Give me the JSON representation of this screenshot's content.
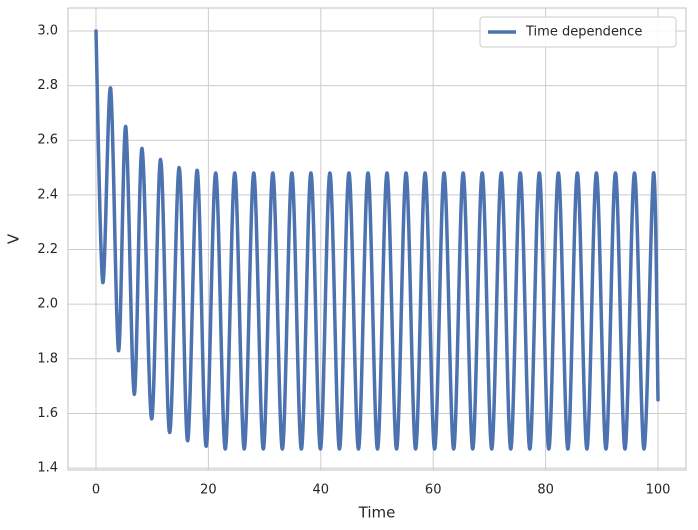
{
  "chart_data": {
    "type": "line",
    "x_label": "Time",
    "y_label": "V",
    "x": [
      0,
      1.2,
      2.6,
      4.0,
      5.3,
      6.8,
      8.2,
      9.9,
      11.5,
      13.1,
      14.8,
      16.3,
      18.0,
      19.6,
      21.3,
      23.0,
      24.69,
      26.38,
      28.07,
      29.77,
      31.46,
      33.16,
      34.85,
      36.54,
      38.24,
      39.93,
      41.62,
      43.32,
      45.01,
      46.7,
      48.4,
      50.09,
      51.78,
      53.48,
      55.17,
      56.87,
      58.56,
      60.25,
      61.94,
      63.64,
      65.33,
      67.03,
      68.72,
      70.41,
      72.11,
      73.8,
      75.49,
      77.19,
      78.88,
      80.57,
      82.27,
      83.96,
      85.65,
      87.35,
      89.04,
      90.74,
      92.43,
      94.12,
      95.82,
      97.51,
      99.2,
      100
    ],
    "series": [
      {
        "name": "Time dependence",
        "color": "#4c72b0",
        "values": [
          3.0,
          2.08,
          2.79,
          1.83,
          2.65,
          1.67,
          2.57,
          1.58,
          2.53,
          1.53,
          2.5,
          1.5,
          2.49,
          1.48,
          2.48,
          1.47,
          2.48,
          1.47,
          2.48,
          1.47,
          2.48,
          1.47,
          2.48,
          1.47,
          2.48,
          1.47,
          2.48,
          1.47,
          2.48,
          1.47,
          2.48,
          1.47,
          2.48,
          1.47,
          2.48,
          1.47,
          2.48,
          1.47,
          2.48,
          1.47,
          2.48,
          1.47,
          2.48,
          1.47,
          2.48,
          1.47,
          2.48,
          1.47,
          2.48,
          1.47,
          2.48,
          1.47,
          2.48,
          1.47,
          2.48,
          1.47,
          2.48,
          1.47,
          2.48,
          1.47,
          2.48,
          1.65
        ]
      }
    ],
    "xlim": [
      -4.98,
      104.98
    ],
    "xticks": [
      0,
      20,
      40,
      60,
      80,
      100
    ],
    "ylim": [
      1.393,
      3.084
    ],
    "yticks": [
      1.4,
      1.6,
      1.8,
      {
        "value": 2.0,
        "label": "2.0"
      },
      2.2,
      2.4,
      2.6,
      2.8,
      {
        "value": 3.0,
        "label": "3.0"
      }
    ],
    "grid": true,
    "legend": "upper right"
  }
}
